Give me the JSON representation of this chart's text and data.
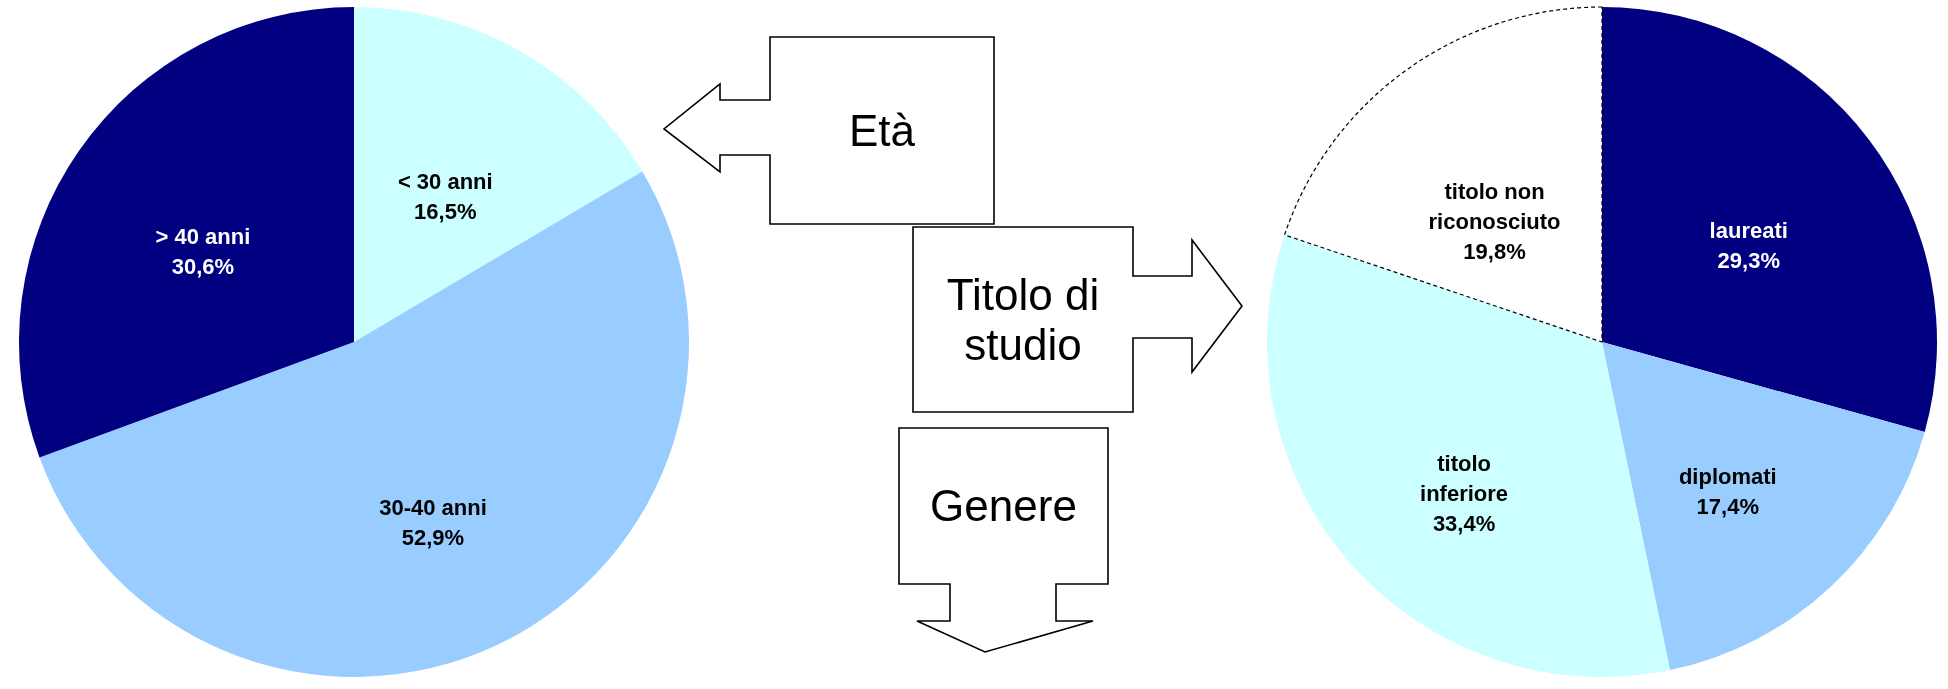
{
  "chart_data": [
    {
      "type": "pie",
      "categories": [
        "< 30 anni",
        "30-40 anni",
        "> 40 anni"
      ],
      "values": [
        16.5,
        52.9,
        30.6
      ],
      "colors": [
        "#ccffff",
        "#99ccff",
        "#000080"
      ],
      "value_labels": [
        "16,5%",
        "52,9%",
        "30,6%"
      ]
    },
    {
      "type": "other",
      "annotations": [
        "Età",
        "Titolo di studio",
        "Genere"
      ]
    },
    {
      "type": "pie",
      "categories": [
        "laureati",
        "diplomati",
        "titolo inferiore",
        "titolo non riconosciuto"
      ],
      "values": [
        29.3,
        17.4,
        33.4,
        19.8
      ],
      "colors": [
        "#000080",
        "#99ccff",
        "#ccffff",
        "#ffffff"
      ],
      "value_labels": [
        "29,3%",
        "17,4%",
        "33,4%",
        "19,8%"
      ]
    }
  ]
}
